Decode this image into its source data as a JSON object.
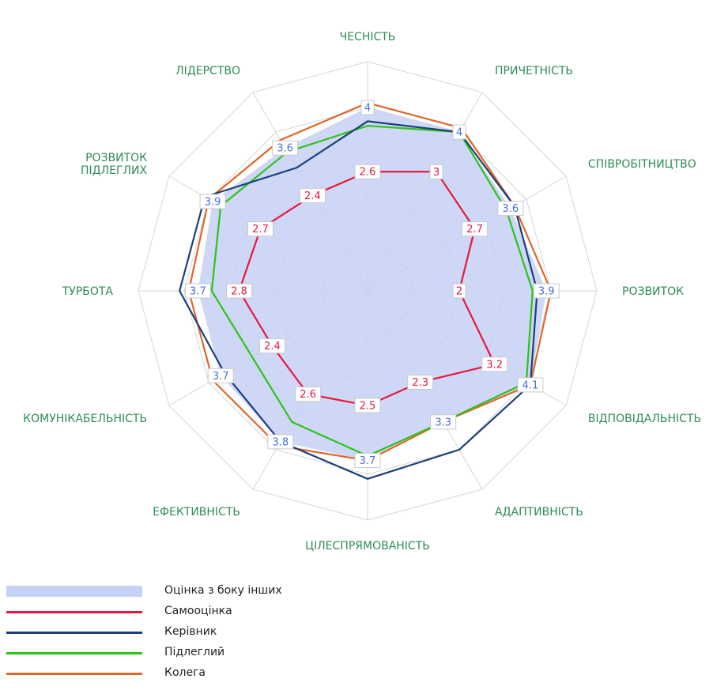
{
  "chart_data": {
    "type": "radar",
    "axes": [
      "ЧЕСНІСТЬ",
      "ПРИЧЕТНІСТЬ",
      "СПІВРОБІТНИЦТВО",
      "РОЗВИТОК",
      "ВІДПОВІДАЛЬНІСТЬ",
      "АДАПТИВНІСТЬ",
      "ЦІЛЕСПРЯМОВАНІСТЬ",
      "ЕФЕКТИВНІСТЬ",
      "КОМУНІКАБЕЛЬНІСТЬ",
      "ТУРБОТА",
      "РОЗВИТОК\nПІДЛЕГЛИХ",
      "ЛІДЕРСТВО"
    ],
    "rlim": [
      0,
      5
    ],
    "grid": true,
    "legend_position": "bottom-left",
    "series": [
      {
        "name": "Оцінка з боку інших",
        "style": "area",
        "color": "#c5d1f5",
        "label_color": "#4a6fdc",
        "show_labels": true,
        "values": [
          4,
          4,
          3.6,
          3.9,
          4.1,
          3.3,
          3.7,
          3.8,
          3.7,
          3.7,
          3.9,
          3.6
        ]
      },
      {
        "name": "Самооцінка",
        "style": "line",
        "color": "#e8173c",
        "label_color": "#e8173c",
        "show_labels": true,
        "values": [
          2.6,
          3,
          2.7,
          2,
          3.2,
          2.3,
          2.5,
          2.6,
          2.4,
          2.8,
          2.7,
          2.4
        ]
      },
      {
        "name": "Керівник",
        "style": "line",
        "color": "#1b3f7a",
        "show_labels": false,
        "values": [
          3.7,
          4,
          3.7,
          3.7,
          4.1,
          4,
          4.1,
          3.8,
          3.6,
          4.1,
          4.1,
          3.1
        ]
      },
      {
        "name": "Підлеглий",
        "style": "line",
        "color": "#2ec21a",
        "show_labels": false,
        "values": [
          3.6,
          4,
          3.5,
          3.6,
          4,
          3.3,
          3.6,
          3.3,
          2.9,
          3.4,
          3.7,
          3.5
        ]
      },
      {
        "name": "Колега",
        "style": "line",
        "color": "#e0662a",
        "show_labels": false,
        "values": [
          4.1,
          4.1,
          3.7,
          4,
          4.1,
          3.3,
          3.7,
          3.9,
          3.9,
          3.9,
          4,
          3.8
        ]
      }
    ]
  }
}
